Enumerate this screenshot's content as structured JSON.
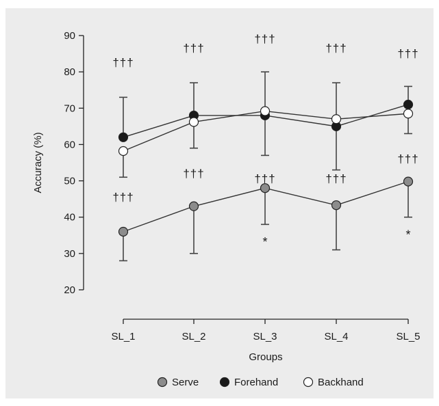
{
  "colors": {
    "background": "#ececec",
    "serve": "#8c8c8c",
    "forehand": "#1a1a1a",
    "backhand": "#ffffff",
    "line": "#333333",
    "error_bar": "#444444"
  },
  "chart_data": {
    "type": "line",
    "ylabel": "Accuracy (%)",
    "xlabel": "Groups",
    "ylim": [
      20,
      90
    ],
    "yticks": [
      "20",
      "30",
      "40",
      "50",
      "60",
      "70",
      "80",
      "90"
    ],
    "categories": [
      "SL_1",
      "SL_2",
      "SL_3",
      "SL_4",
      "SL_5"
    ],
    "grid": false,
    "legend_position": "bottom",
    "series": [
      {
        "name": "Serve",
        "marker": "gray-circle",
        "values": [
          36,
          43,
          48,
          43.3,
          49.8
        ],
        "error_low": [
          28,
          30,
          38,
          31,
          40
        ],
        "error_high": [
          null,
          null,
          null,
          null,
          null
        ]
      },
      {
        "name": "Forehand",
        "marker": "black-circle",
        "values": [
          62,
          68,
          68,
          65,
          71
        ],
        "error_low": [
          null,
          null,
          null,
          null,
          null
        ],
        "error_high": [
          73,
          77,
          80,
          77,
          76
        ]
      },
      {
        "name": "Backhand",
        "marker": "white-circle",
        "values": [
          58.2,
          66.2,
          69.2,
          67,
          68.5
        ],
        "error_low": [
          51,
          59,
          57,
          53,
          63
        ],
        "error_high": [
          null,
          null,
          null,
          null,
          null
        ]
      }
    ],
    "annotations": [
      {
        "text": "†††",
        "category": "SL_1",
        "y": 81.5
      },
      {
        "text": "†††",
        "category": "SL_2",
        "y": 85.5
      },
      {
        "text": "†††",
        "category": "SL_3",
        "y": 88
      },
      {
        "text": "†††",
        "category": "SL_4",
        "y": 85.5
      },
      {
        "text": "†††",
        "category": "SL_5",
        "y": 84
      },
      {
        "text": "†††",
        "category": "SL_1",
        "y": 44.5
      },
      {
        "text": "†††",
        "category": "SL_2",
        "y": 51
      },
      {
        "text": "†††",
        "category": "SL_3",
        "y": 49.5
      },
      {
        "text": "†††",
        "category": "SL_4",
        "y": 49.5
      },
      {
        "text": "†††",
        "category": "SL_5",
        "y": 55
      },
      {
        "text": "*",
        "category": "SL_3",
        "y": 32
      },
      {
        "text": "*",
        "category": "SL_5",
        "y": 34
      }
    ]
  }
}
